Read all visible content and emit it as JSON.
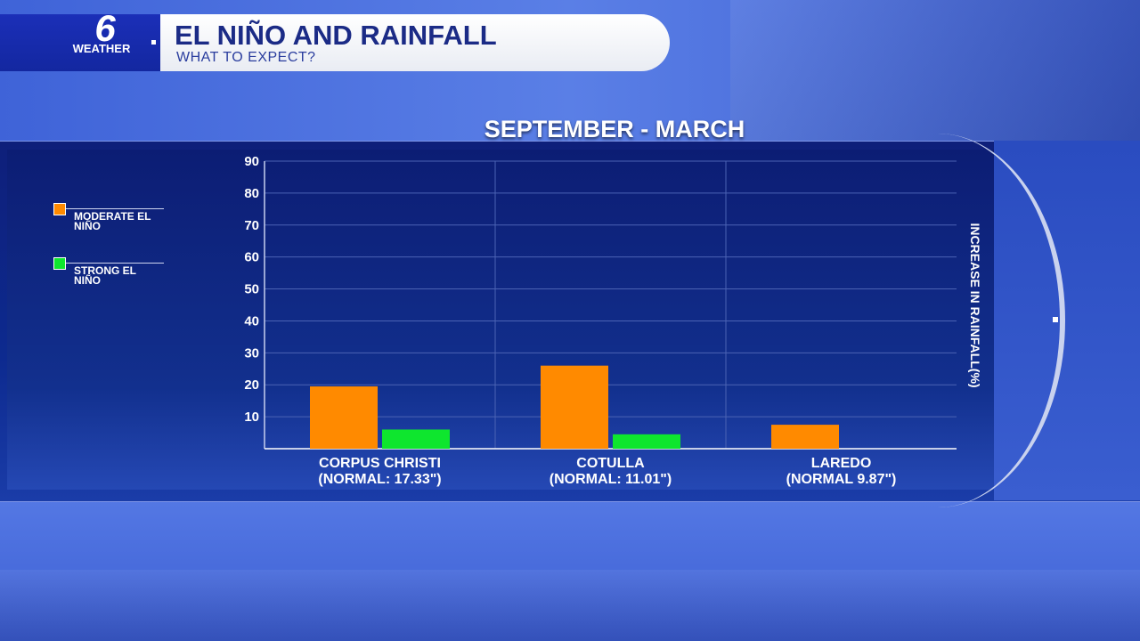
{
  "header": {
    "logo_number": "6",
    "logo_text": "WEATHER",
    "title": "EL NIÑO AND RAINFALL",
    "subtitle": "WHAT TO EXPECT?"
  },
  "chart_data": {
    "type": "bar",
    "title": "SEPTEMBER - MARCH",
    "ylabel": "INCREASE IN RAINFALL(%)",
    "xlabel": "",
    "ylim": [
      0,
      90
    ],
    "yticks": [
      10,
      20,
      30,
      40,
      50,
      60,
      70,
      80,
      90
    ],
    "categories": [
      [
        "CORPUS CHRISTI",
        "(NORMAL: 17.33\")"
      ],
      [
        "COTULLA",
        "(NORMAL: 11.01\")"
      ],
      [
        "LAREDO",
        "(NORMAL 9.87\")"
      ]
    ],
    "series": [
      {
        "name": "MODERATE EL NIÑO",
        "color": "#ff8a00",
        "values": [
          19.5,
          26,
          7.5
        ]
      },
      {
        "name": "STRONG EL NIÑO",
        "color": "#0ee62e",
        "values": [
          6,
          4.5,
          null
        ]
      }
    ],
    "grid": true,
    "legend_position": "left"
  },
  "legend": [
    {
      "label_line1": "MODERATE EL",
      "label_line2": "NIÑO",
      "color": "#ff8a00"
    },
    {
      "label_line1": "STRONG EL",
      "label_line2": "NIÑO",
      "color": "#0ee62e"
    }
  ]
}
